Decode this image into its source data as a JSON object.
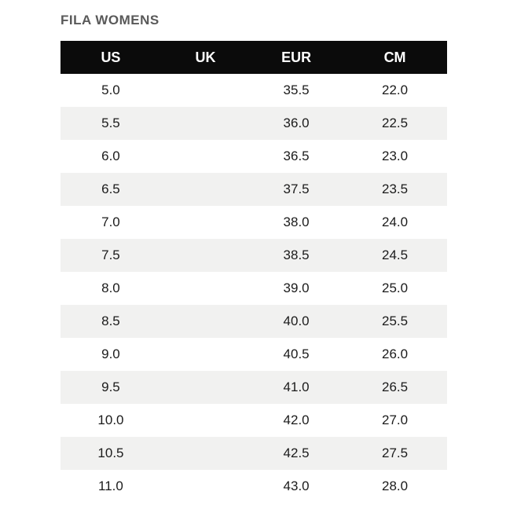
{
  "title": "FILA WOMENS",
  "table": {
    "columns": [
      "US",
      "UK",
      "EUR",
      "CM"
    ],
    "rows": [
      [
        "5.0",
        "",
        "35.5",
        "22.0"
      ],
      [
        "5.5",
        "",
        "36.0",
        "22.5"
      ],
      [
        "6.0",
        "",
        "36.5",
        "23.0"
      ],
      [
        "6.5",
        "",
        "37.5",
        "23.5"
      ],
      [
        "7.0",
        "",
        "38.0",
        "24.0"
      ],
      [
        "7.5",
        "",
        "38.5",
        "24.5"
      ],
      [
        "8.0",
        "",
        "39.0",
        "25.0"
      ],
      [
        "8.5",
        "",
        "40.0",
        "25.5"
      ],
      [
        "9.0",
        "",
        "40.5",
        "26.0"
      ],
      [
        "9.5",
        "",
        "41.0",
        "26.5"
      ],
      [
        "10.0",
        "",
        "42.0",
        "27.0"
      ],
      [
        "10.5",
        "",
        "42.5",
        "27.5"
      ],
      [
        "11.0",
        "",
        "43.0",
        "28.0"
      ]
    ]
  },
  "colors": {
    "page_bg": "#ffffff",
    "title_color": "#595959",
    "header_bg": "#0b0b0b",
    "header_text": "#ffffff",
    "cell_text": "#1b1b1b",
    "alt_row_bg": "#f1f1f0"
  }
}
